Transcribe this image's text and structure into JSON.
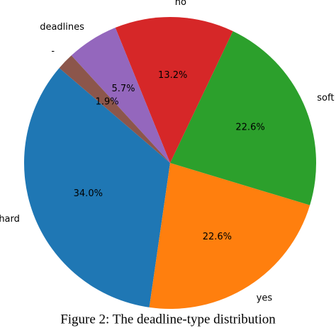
{
  "chart_data": {
    "type": "pie",
    "categories": [
      "hard",
      "yes",
      "soft",
      "no",
      "deadlines",
      "-"
    ],
    "values": [
      34.0,
      22.6,
      22.6,
      13.2,
      5.7,
      1.9
    ],
    "value_labels": [
      "34.0%",
      "22.6%",
      "22.6%",
      "13.2%",
      "5.7%",
      "1.9%"
    ],
    "colors": [
      "#1f77b4",
      "#ff7f0e",
      "#2ca02c",
      "#d62728",
      "#9467bd",
      "#8c564b"
    ],
    "caption": "Figure 2: The deadline-type distribution"
  }
}
